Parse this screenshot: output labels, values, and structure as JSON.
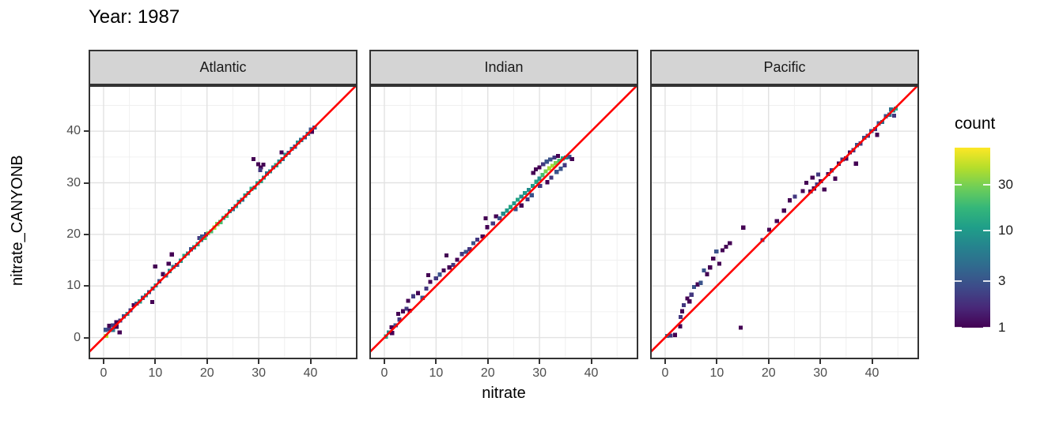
{
  "colors": {
    "red_line": "#FF0000",
    "strip_bg": "#D4D4D4",
    "panel_border": "#333333",
    "grid_major": "#E2E2E2",
    "grid_minor": "#F0F0F0",
    "tick_text": "#4D4D4D",
    "text": "#000000",
    "viridis_stops": [
      "#440154",
      "#482878",
      "#3e4a89",
      "#31688e",
      "#26828e",
      "#1f9e89",
      "#35b779",
      "#6ece58",
      "#b5de2b",
      "#fde725"
    ]
  },
  "chart_data": {
    "type": "heatmap",
    "subtype": "2d-binned scatter (geom_bin2d), faceted",
    "title": "Year: 1987",
    "xlabel": "nitrate",
    "ylabel": "nitrate_CANYONB",
    "x_ticks": [
      0,
      10,
      20,
      30,
      40
    ],
    "y_ticks": [
      0,
      10,
      20,
      30,
      40
    ],
    "x_minor": [
      5,
      15,
      25,
      35,
      45
    ],
    "y_minor": [
      5,
      15,
      25,
      35,
      45
    ],
    "xlim": [
      -2.9,
      49.1
    ],
    "ylim": [
      -4.2,
      48.9
    ],
    "grid": true,
    "identity_line": true,
    "bin_size": 0.8,
    "legend": {
      "title": "count",
      "ticks": [
        30,
        10,
        3,
        1
      ],
      "scale": "log",
      "color_domain": [
        1,
        72
      ],
      "position": "right"
    },
    "facets": [
      {
        "name": "Atlantic",
        "bins": [
          [
            0.5,
            0.3,
            45
          ],
          [
            0.4,
            1.5,
            3
          ],
          [
            1.1,
            1.6,
            2
          ],
          [
            1.1,
            2.3,
            1
          ],
          [
            1.8,
            1.5,
            5
          ],
          [
            1.8,
            2.4,
            2
          ],
          [
            2.5,
            2.1,
            1
          ],
          [
            2.5,
            3.0,
            1
          ],
          [
            3.1,
            1.0,
            1
          ],
          [
            3.2,
            3.3,
            2
          ],
          [
            3.9,
            4.1,
            3
          ],
          [
            4.6,
            4.6,
            8
          ],
          [
            5.2,
            5.3,
            2
          ],
          [
            5.8,
            6.3,
            1
          ],
          [
            6.4,
            6.6,
            3
          ],
          [
            7.0,
            7.0,
            10
          ],
          [
            7.6,
            7.7,
            3
          ],
          [
            8.2,
            8.2,
            8
          ],
          [
            8.8,
            8.8,
            3
          ],
          [
            9.4,
            6.9,
            1
          ],
          [
            9.5,
            9.5,
            5
          ],
          [
            10.1,
            10.1,
            8
          ],
          [
            10.0,
            13.8,
            1
          ],
          [
            10.8,
            10.9,
            3
          ],
          [
            11.5,
            12.3,
            1
          ],
          [
            12.1,
            12.0,
            5
          ],
          [
            12.8,
            12.9,
            8
          ],
          [
            12.6,
            14.3,
            1
          ],
          [
            13.2,
            16.1,
            1
          ],
          [
            13.5,
            13.7,
            5
          ],
          [
            14.2,
            14.1,
            3
          ],
          [
            14.9,
            14.9,
            10
          ],
          [
            15.6,
            15.8,
            12
          ],
          [
            16.3,
            16.3,
            8
          ],
          [
            16.9,
            17.1,
            3
          ],
          [
            17.5,
            17.5,
            10
          ],
          [
            18.2,
            18.1,
            12
          ],
          [
            18.5,
            19.3,
            2
          ],
          [
            18.9,
            18.9,
            8
          ],
          [
            19.1,
            19.6,
            3
          ],
          [
            19.6,
            19.3,
            20
          ],
          [
            19.8,
            20.0,
            2
          ],
          [
            20.2,
            20.2,
            30
          ],
          [
            20.8,
            20.6,
            20
          ],
          [
            21.4,
            21.3,
            40
          ],
          [
            22.0,
            22.0,
            30
          ],
          [
            22.6,
            22.4,
            20
          ],
          [
            23.2,
            23.2,
            12
          ],
          [
            23.8,
            23.6,
            20
          ],
          [
            24.4,
            24.5,
            8
          ],
          [
            25.0,
            24.9,
            5
          ],
          [
            25.6,
            25.5,
            10
          ],
          [
            26.2,
            26.3,
            8
          ],
          [
            26.8,
            26.7,
            5
          ],
          [
            27.4,
            27.5,
            10
          ],
          [
            28.0,
            28.0,
            8
          ],
          [
            28.6,
            28.8,
            12
          ],
          [
            29.2,
            29.1,
            8
          ],
          [
            29.8,
            29.9,
            10
          ],
          [
            29.0,
            34.6,
            1
          ],
          [
            29.9,
            33.6,
            1
          ],
          [
            30.4,
            33.0,
            1
          ],
          [
            30.9,
            33.5,
            1
          ],
          [
            30.3,
            32.5,
            2
          ],
          [
            30.4,
            30.3,
            12
          ],
          [
            31.0,
            31.0,
            8
          ],
          [
            31.6,
            31.8,
            5
          ],
          [
            32.2,
            32.2,
            8
          ],
          [
            32.8,
            33.0,
            5
          ],
          [
            33.4,
            33.4,
            12
          ],
          [
            34.0,
            34.1,
            8
          ],
          [
            34.6,
            34.6,
            5
          ],
          [
            34.4,
            35.9,
            1
          ],
          [
            35.2,
            35.4,
            8
          ],
          [
            35.8,
            35.8,
            3
          ],
          [
            36.4,
            36.6,
            5
          ],
          [
            37.0,
            37.0,
            3
          ],
          [
            37.6,
            37.8,
            8
          ],
          [
            38.2,
            38.3,
            5
          ],
          [
            38.9,
            38.8,
            3
          ],
          [
            39.5,
            39.5,
            5
          ],
          [
            40.1,
            40.3,
            3
          ],
          [
            40.3,
            39.9,
            1
          ],
          [
            40.8,
            40.7,
            3
          ]
        ]
      },
      {
        "name": "Indian",
        "bins": [
          [
            0.3,
            0.2,
            12
          ],
          [
            0.9,
            1.0,
            8
          ],
          [
            1.5,
            0.9,
            1
          ],
          [
            1.4,
            2.0,
            1
          ],
          [
            2.2,
            2.4,
            3
          ],
          [
            2.9,
            3.5,
            2
          ],
          [
            2.7,
            4.6,
            1
          ],
          [
            3.6,
            5.1,
            1
          ],
          [
            4.3,
            5.6,
            2
          ],
          [
            4.9,
            5.2,
            1
          ],
          [
            4.6,
            7.1,
            1
          ],
          [
            5.6,
            8.0,
            2
          ],
          [
            6.5,
            8.6,
            1
          ],
          [
            7.4,
            7.7,
            3
          ],
          [
            8.1,
            9.5,
            2
          ],
          [
            8.9,
            10.8,
            1
          ],
          [
            8.5,
            12.1,
            1
          ],
          [
            10.0,
            11.5,
            2
          ],
          [
            10.7,
            12.2,
            3
          ],
          [
            11.5,
            13.0,
            1
          ],
          [
            12.0,
            15.9,
            1
          ],
          [
            12.6,
            13.6,
            1
          ],
          [
            13.3,
            14.1,
            2
          ],
          [
            14.1,
            15.1,
            1
          ],
          [
            15.0,
            16.2,
            2
          ],
          [
            15.8,
            16.6,
            3
          ],
          [
            16.5,
            17.1,
            2
          ],
          [
            17.2,
            18.3,
            3
          ],
          [
            18.0,
            19.0,
            2
          ],
          [
            19.0,
            19.6,
            1
          ],
          [
            19.9,
            21.4,
            1
          ],
          [
            19.6,
            23.1,
            1
          ],
          [
            21.0,
            22.1,
            2
          ],
          [
            21.6,
            23.5,
            1
          ],
          [
            22.3,
            23.1,
            3
          ],
          [
            23.0,
            24.0,
            8
          ],
          [
            23.7,
            24.6,
            10
          ],
          [
            24.4,
            25.3,
            12
          ],
          [
            25.1,
            26.0,
            10
          ],
          [
            25.4,
            24.9,
            3
          ],
          [
            25.8,
            26.7,
            12
          ],
          [
            26.5,
            25.6,
            1
          ],
          [
            26.5,
            27.3,
            8
          ],
          [
            27.2,
            28.0,
            10
          ],
          [
            27.7,
            26.8,
            2
          ],
          [
            27.9,
            28.6,
            8
          ],
          [
            28.5,
            27.6,
            3
          ],
          [
            28.7,
            29.4,
            10
          ],
          [
            28.8,
            31.9,
            1
          ],
          [
            29.4,
            30.2,
            12
          ],
          [
            30.0,
            30.8,
            8
          ],
          [
            30.1,
            29.4,
            2
          ],
          [
            30.6,
            31.5,
            20
          ],
          [
            31.2,
            32.2,
            30
          ],
          [
            31.5,
            30.1,
            1
          ],
          [
            31.9,
            32.8,
            40
          ],
          [
            32.5,
            33.3,
            40
          ],
          [
            32.3,
            31.0,
            2
          ],
          [
            33.1,
            33.8,
            30
          ],
          [
            33.3,
            32.1,
            3
          ],
          [
            33.8,
            34.3,
            20
          ],
          [
            34.1,
            32.7,
            3
          ],
          [
            34.5,
            34.7,
            12
          ],
          [
            35.1,
            34.9,
            8
          ],
          [
            35.8,
            35.0,
            3
          ],
          [
            36.3,
            34.6,
            1
          ],
          [
            34.9,
            33.4,
            2
          ],
          [
            30.0,
            33.0,
            1
          ],
          [
            30.7,
            33.6,
            2
          ],
          [
            31.4,
            34.1,
            3
          ],
          [
            32.1,
            34.5,
            3
          ],
          [
            32.9,
            34.9,
            2
          ],
          [
            33.6,
            35.2,
            1
          ],
          [
            29.3,
            32.6,
            1
          ]
        ]
      },
      {
        "name": "Pacific",
        "bins": [
          [
            0.4,
            0.3,
            5
          ],
          [
            1.1,
            0.4,
            2
          ],
          [
            1.9,
            0.5,
            1
          ],
          [
            2.9,
            2.2,
            1
          ],
          [
            3.0,
            4.0,
            2
          ],
          [
            3.3,
            5.1,
            1
          ],
          [
            3.6,
            6.3,
            2
          ],
          [
            4.3,
            7.6,
            1
          ],
          [
            4.7,
            7.0,
            1
          ],
          [
            5.1,
            8.3,
            2
          ],
          [
            5.6,
            9.8,
            3
          ],
          [
            6.3,
            10.3,
            1
          ],
          [
            6.9,
            10.6,
            3
          ],
          [
            7.5,
            13.0,
            3
          ],
          [
            8.1,
            12.3,
            1
          ],
          [
            8.7,
            13.6,
            1
          ],
          [
            9.3,
            15.3,
            1
          ],
          [
            9.9,
            16.7,
            3
          ],
          [
            10.5,
            14.3,
            1
          ],
          [
            11.1,
            16.9,
            1
          ],
          [
            11.8,
            17.6,
            1
          ],
          [
            12.5,
            18.3,
            1
          ],
          [
            14.6,
            1.9,
            1
          ],
          [
            15.1,
            21.3,
            1
          ],
          [
            18.8,
            18.9,
            2
          ],
          [
            20.1,
            20.9,
            1
          ],
          [
            21.6,
            22.6,
            1
          ],
          [
            23.0,
            24.6,
            1
          ],
          [
            24.1,
            26.6,
            1
          ],
          [
            25.1,
            27.3,
            2
          ],
          [
            26.6,
            28.4,
            1
          ],
          [
            27.3,
            30.0,
            1
          ],
          [
            28.1,
            28.3,
            1
          ],
          [
            28.5,
            31.0,
            1
          ],
          [
            29.6,
            31.6,
            2
          ],
          [
            28.8,
            28.9,
            1
          ],
          [
            29.4,
            29.7,
            2
          ],
          [
            30.1,
            30.3,
            1
          ],
          [
            30.8,
            28.7,
            1
          ],
          [
            31.5,
            31.7,
            1
          ],
          [
            32.2,
            32.4,
            2
          ],
          [
            32.9,
            30.8,
            1
          ],
          [
            33.6,
            33.7,
            1
          ],
          [
            34.3,
            34.5,
            2
          ],
          [
            35.0,
            34.7,
            1
          ],
          [
            35.7,
            35.9,
            1
          ],
          [
            36.4,
            36.3,
            2
          ],
          [
            36.9,
            33.7,
            1
          ],
          [
            37.1,
            37.3,
            3
          ],
          [
            37.8,
            37.6,
            2
          ],
          [
            38.5,
            38.7,
            3
          ],
          [
            39.2,
            39.1,
            2
          ],
          [
            39.9,
            40.0,
            3
          ],
          [
            40.6,
            40.4,
            2
          ],
          [
            41.0,
            39.3,
            1
          ],
          [
            41.3,
            41.5,
            3
          ],
          [
            42.0,
            41.8,
            5
          ],
          [
            42.7,
            42.9,
            3
          ],
          [
            43.4,
            43.2,
            5
          ],
          [
            44.1,
            44.0,
            8
          ],
          [
            44.6,
            44.4,
            12
          ],
          [
            44.3,
            43.0,
            2
          ],
          [
            43.7,
            44.2,
            5
          ]
        ]
      }
    ]
  }
}
